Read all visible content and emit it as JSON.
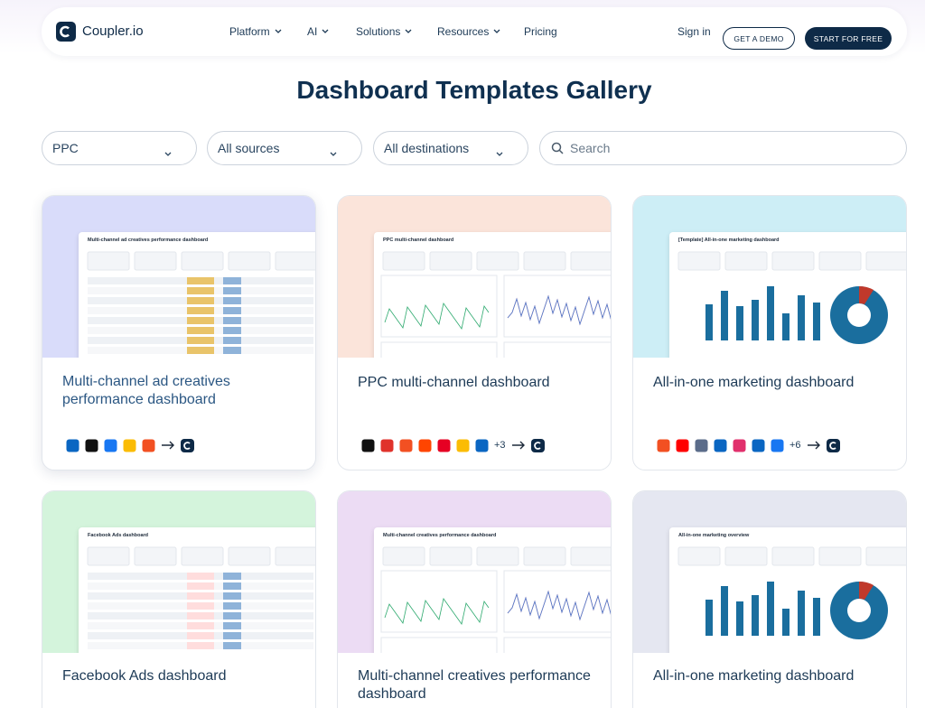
{
  "nav": {
    "logo": "Coupler.io",
    "items": [
      "Platform",
      "AI",
      "Solutions",
      "Resources",
      "Pricing"
    ],
    "sign_in": "Sign in",
    "demo": "GET A DEMO",
    "start": "START FOR FREE"
  },
  "title": "Dashboard Templates Gallery",
  "filters": {
    "type": "PPC",
    "sources": "All sources",
    "destinations": "All destinations",
    "search_placeholder": "Search"
  },
  "cards": [
    {
      "title": "Multi-channel ad creatives performance dashboard",
      "thumbnail_title": "Multi-channel ad creatives performance dashboard"
    },
    {
      "title": "PPC multi-channel dashboard",
      "thumbnail_title": "PPC multi-channel dashboard",
      "more_sources": "+3"
    },
    {
      "title": "All-in-one marketing dashboard",
      "thumbnail_title": "[Template] All-in-one marketing dashboard",
      "more_sources": "+6"
    },
    {
      "title": "Facebook Ads dashboard",
      "thumbnail_title": "Facebook Ads dashboard"
    },
    {
      "title": "Multi-channel creatives performance dashboard",
      "thumbnail_title": "Multi-channel creatives performance dashboard"
    },
    {
      "title": "All-in-one marketing dashboard",
      "thumbnail_title": "All-in-one marketing overview"
    }
  ]
}
